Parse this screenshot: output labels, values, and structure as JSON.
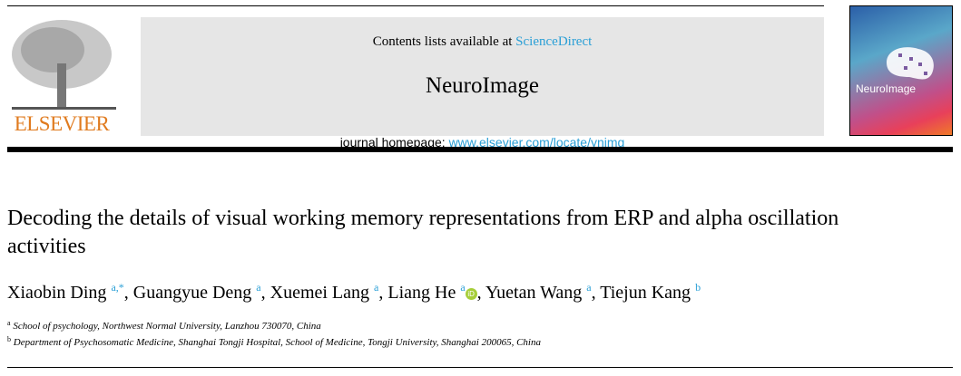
{
  "header": {
    "contents_prefix": "Contents lists available at ",
    "contents_link": "ScienceDirect",
    "journal": "NeuroImage",
    "homepage_prefix": "journal homepage: ",
    "homepage_link": "www.elsevier.com/locate/ynimg",
    "publisher_logo": "ELSEVIER",
    "cover_title": "NeuroImage"
  },
  "article": {
    "title": "Decoding the details of visual working memory representations from ERP and alpha oscillation activities",
    "authors": [
      {
        "name": "Xiaobin Ding",
        "sup": "a,*"
      },
      {
        "name": "Guangyue Deng",
        "sup": "a"
      },
      {
        "name": "Xuemei Lang",
        "sup": "a"
      },
      {
        "name": "Liang He",
        "sup": "a",
        "orcid": true
      },
      {
        "name": "Yuetan Wang",
        "sup": "a"
      },
      {
        "name": "Tiejun Kang",
        "sup": "b"
      }
    ],
    "affiliations": [
      {
        "mark": "a",
        "text": "School of psychology, Northwest Normal University, Lanzhou 730070, China"
      },
      {
        "mark": "b",
        "text": "Department of Psychosomatic Medicine, Shanghai Tongji Hospital, School of Medicine, Tongji University, Shanghai 200065, China"
      }
    ]
  },
  "colors": {
    "link": "#2a9fd6",
    "elsevier": "#e07b1f",
    "orcid": "#a6ce39"
  }
}
